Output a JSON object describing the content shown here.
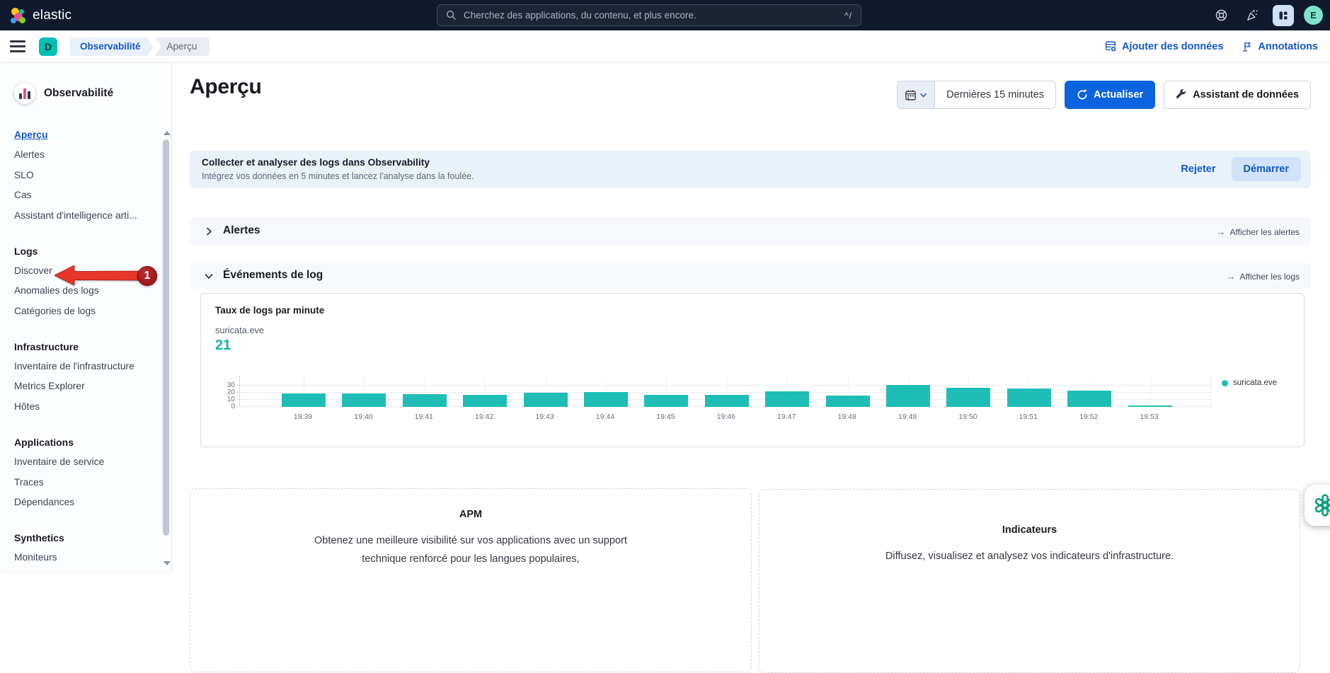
{
  "header": {
    "brand": "elastic",
    "search": {
      "placeholder": "Cherchez des applications, du contenu, et plus encore.",
      "shortcut": "^/"
    },
    "avatar_initial": "E"
  },
  "breadcrumb_bar": {
    "space_badge": "D",
    "breadcrumbs": [
      "Observabilité",
      "Aperçu"
    ],
    "add_data_label": "Ajouter des données",
    "annotations_label": "Annotations"
  },
  "sidebar": {
    "title": "Observabilité",
    "active_item": "Aperçu",
    "groups": [
      {
        "heading": null,
        "items": [
          "Aperçu",
          "Alertes",
          "SLO",
          "Cas",
          "Assistant d'intelligence arti..."
        ]
      },
      {
        "heading": "Logs",
        "items": [
          "Discover",
          "Anomalies des logs",
          "Catégories de logs"
        ]
      },
      {
        "heading": "Infrastructure",
        "items": [
          "Inventaire de l'infrastructure",
          "Metrics Explorer",
          "Hôtes"
        ]
      },
      {
        "heading": "Applications",
        "items": [
          "Inventaire de service",
          "Traces",
          "Dépendances"
        ]
      },
      {
        "heading": "Synthetics",
        "items": [
          "Moniteurs"
        ]
      }
    ]
  },
  "annotation": {
    "step": "1",
    "target": "Discover",
    "arrow_color": "#e8362a",
    "badge_color": "#9e161d"
  },
  "page": {
    "title": "Aperçu",
    "time_range": "Dernières 15 minutes",
    "refresh_label": "Actualiser",
    "assistant_label": "Assistant de données"
  },
  "banner": {
    "title": "Collecter et analyser des logs dans Observability",
    "subtitle": "Intégrez vos données en 5 minutes et lancez l'analyse dans la foulée.",
    "dismiss_label": "Rejeter",
    "start_label": "Démarrer"
  },
  "sections": {
    "alerts": {
      "title": "Alertes",
      "link": "Afficher les alertes"
    },
    "log_events": {
      "title": "Événements de log",
      "link": "Afficher les logs"
    }
  },
  "chart_card": {
    "title": "Taux de logs par minute",
    "series_label": "suricata.eve",
    "current_value": "21",
    "legend": "suricata.eve"
  },
  "chart_data": {
    "type": "bar",
    "title": "Taux de logs par minute",
    "series_name": "suricata.eve",
    "categories": [
      "19:39",
      "19:40",
      "19:41",
      "19:42",
      "19:43",
      "19:44",
      "19:45",
      "19:46",
      "19:47",
      "19:48",
      "19:49",
      "19:50",
      "19:51",
      "19:52",
      "19:53"
    ],
    "values": [
      19,
      19,
      18,
      17,
      20,
      21,
      17,
      17,
      22,
      16,
      31,
      27,
      26,
      23,
      2
    ],
    "ylabel": "",
    "xlabel": "",
    "ylim": [
      0,
      30
    ],
    "yticks": [
      0,
      10,
      20,
      30
    ],
    "grid": true,
    "legend_position": "right",
    "bar_color": "#1ebeb7"
  },
  "bottom_panels": [
    {
      "title": "APM",
      "body": "Obtenez une meilleure visibilité sur vos applications avec un support technique renforcé pour les langues populaires,"
    },
    {
      "title": "Indicateurs",
      "body": "Diffusez, visualisez et analysez vos indicateurs d'infrastructure."
    }
  ],
  "colors": {
    "primary_blue": "#0b64dd",
    "link_blue": "#1657c9",
    "teal": "#1ebeb7",
    "header_bg": "#101a2c"
  }
}
